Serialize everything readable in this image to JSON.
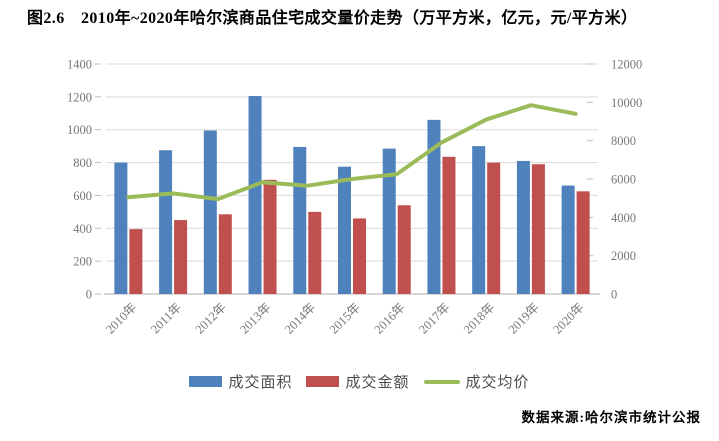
{
  "title": "图2.6　2010年~2020年哈尔滨商品住宅成交量价走势（万平方米，亿元，元/平方米）",
  "source": "数据来源:哈尔滨市统计公报",
  "chart_data": {
    "type": "bar",
    "subtype": "combo-bar-line-dual-axis",
    "categories": [
      "2010年",
      "2011年",
      "2012年",
      "2013年",
      "2014年",
      "2015年",
      "2016年",
      "2017年",
      "2018年",
      "2019年",
      "2020年"
    ],
    "series": [
      {
        "name": "成交面积",
        "type": "bar",
        "axis": "left",
        "color": "#4F81BD",
        "values": [
          800,
          875,
          995,
          1205,
          895,
          775,
          885,
          1060,
          900,
          810,
          660
        ]
      },
      {
        "name": "成交金额",
        "type": "bar",
        "axis": "left",
        "color": "#C0504D",
        "values": [
          395,
          450,
          485,
          695,
          500,
          460,
          540,
          835,
          800,
          790,
          625
        ]
      },
      {
        "name": "成交均价",
        "type": "line",
        "axis": "right",
        "color": "#9BBB59",
        "values": [
          5050,
          5250,
          4950,
          5830,
          5650,
          6000,
          6250,
          7900,
          9100,
          9850,
          9400
        ]
      }
    ],
    "left_axis": {
      "min": 0,
      "max": 1400,
      "step": 200,
      "ticks": [
        0,
        200,
        400,
        600,
        800,
        1000,
        1200,
        1400
      ]
    },
    "right_axis": {
      "min": 0,
      "max": 12000,
      "step": 2000,
      "ticks": [
        0,
        2000,
        4000,
        6000,
        8000,
        10000,
        12000
      ]
    },
    "grid": true,
    "legend_position": "bottom",
    "colors": {
      "grid": "#D9D9D9",
      "axis_line": "#BFBFBF",
      "tick_text": "#777777"
    }
  }
}
